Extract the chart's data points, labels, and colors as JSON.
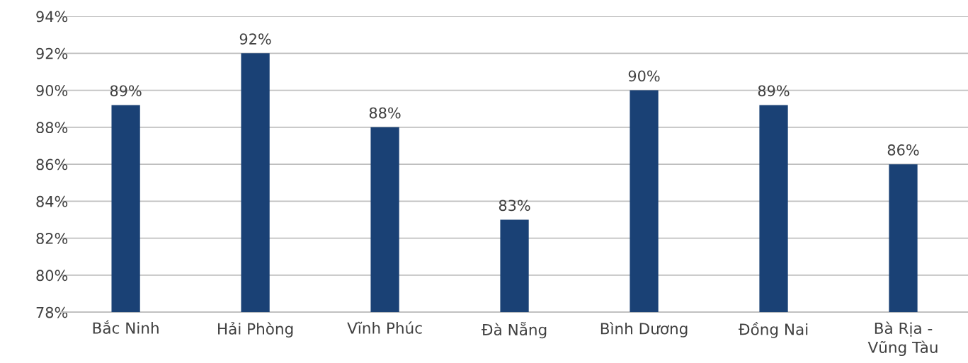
{
  "chart_data": {
    "type": "bar",
    "categories": [
      "Bắc Ninh",
      "Hải Phòng",
      "Vĩnh Phúc",
      "Đà Nẵng",
      "Bình Dương",
      "Đồng Nai",
      "Bà Rịa -\nVũng Tàu"
    ],
    "values": [
      89.2,
      92,
      88,
      83,
      90,
      89.2,
      86
    ],
    "value_labels": [
      "89%",
      "92%",
      "88%",
      "83%",
      "90%",
      "89%",
      "86%"
    ],
    "color": "#1a4175",
    "ylim": [
      78,
      94
    ],
    "yticks": [
      {
        "value": 78,
        "label": "78%"
      },
      {
        "value": 80,
        "label": "80%"
      },
      {
        "value": 82,
        "label": "82%"
      },
      {
        "value": 84,
        "label": "84%"
      },
      {
        "value": 86,
        "label": "86%"
      },
      {
        "value": 88,
        "label": "88%"
      },
      {
        "value": 90,
        "label": "90%"
      },
      {
        "value": 92,
        "label": "92%"
      },
      {
        "value": 94,
        "label": "94%"
      }
    ],
    "grid": "y"
  }
}
